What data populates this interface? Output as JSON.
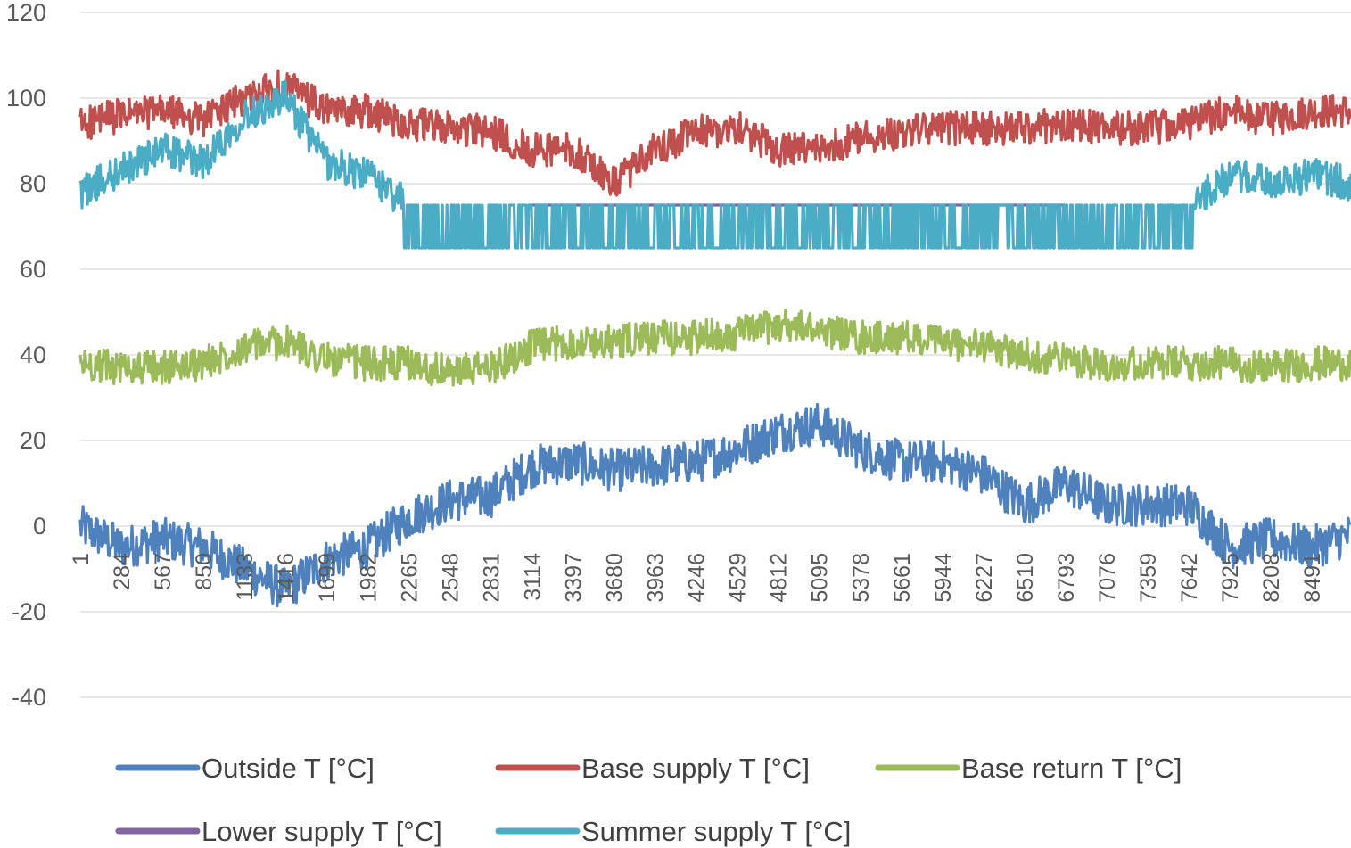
{
  "chart_data": {
    "type": "line",
    "title": "",
    "xlabel": "",
    "ylabel": "",
    "ylim": [
      -40,
      120
    ],
    "yticks": [
      -40,
      -20,
      0,
      20,
      40,
      60,
      80,
      100,
      120
    ],
    "xlim": [
      1,
      8760
    ],
    "xticks": [
      1,
      284,
      567,
      850,
      1133,
      1416,
      1699,
      1982,
      2265,
      2548,
      2831,
      3114,
      3397,
      3680,
      3963,
      4246,
      4529,
      4812,
      5095,
      5378,
      5661,
      5944,
      6227,
      6510,
      6793,
      7076,
      7359,
      7642,
      7925,
      8208,
      8491
    ],
    "grid": "horizontal",
    "legend_position": "bottom",
    "x": [
      1,
      284,
      567,
      850,
      1133,
      1416,
      1699,
      1982,
      2265,
      2548,
      2831,
      3114,
      3397,
      3680,
      3963,
      4246,
      4529,
      4812,
      5095,
      5378,
      5661,
      5944,
      6227,
      6510,
      6793,
      7076,
      7359,
      7642,
      7925,
      8208,
      8491,
      8760
    ],
    "series": [
      {
        "name": "Outside T [°C]",
        "color": "#4f81bd",
        "values": [
          0,
          -5,
          -3,
          -5,
          -10,
          -15,
          -8,
          -5,
          2,
          6,
          7,
          14,
          15,
          13,
          14,
          15,
          18,
          22,
          24,
          18,
          15,
          15,
          12,
          5,
          10,
          5,
          5,
          5,
          -5,
          -3,
          -5,
          -2
        ]
      },
      {
        "name": "Base supply T [°C]",
        "color": "#c0504d",
        "values": [
          94,
          96,
          97,
          95,
          100,
          103,
          97,
          97,
          94,
          93,
          92,
          88,
          88,
          80,
          88,
          92,
          93,
          88,
          88,
          91,
          92,
          93,
          93,
          93,
          94,
          93,
          93,
          94,
          97,
          95,
          97,
          97
        ]
      },
      {
        "name": "Base return T [°C]",
        "color": "#9bbb59",
        "values": [
          38,
          37,
          37,
          38,
          42,
          43,
          39,
          38,
          38,
          36,
          37,
          42,
          43,
          43,
          44,
          44,
          45,
          47,
          46,
          44,
          44,
          43,
          42,
          40,
          39,
          38,
          38,
          38,
          38,
          37,
          38,
          38
        ]
      },
      {
        "name": "Lower supply T [°C]",
        "color": "#8064a2",
        "values": [
          null,
          null,
          null,
          null,
          null,
          null,
          null,
          null,
          null,
          null,
          null,
          75,
          75,
          75,
          75,
          75,
          75,
          75,
          75,
          75,
          75,
          75,
          75,
          75,
          75,
          null,
          null,
          null,
          null,
          null,
          null,
          null
        ]
      },
      {
        "name": "Summer supply T [°C]",
        "color": "#4bacc6",
        "values": [
          78,
          83,
          88,
          85,
          96,
          100,
          85,
          82,
          75,
          70,
          70,
          68,
          68,
          70,
          65,
          65,
          65,
          65,
          65,
          65,
          65,
          68,
          70,
          72,
          72,
          70,
          73,
          75,
          82,
          80,
          82,
          80
        ]
      }
    ]
  }
}
